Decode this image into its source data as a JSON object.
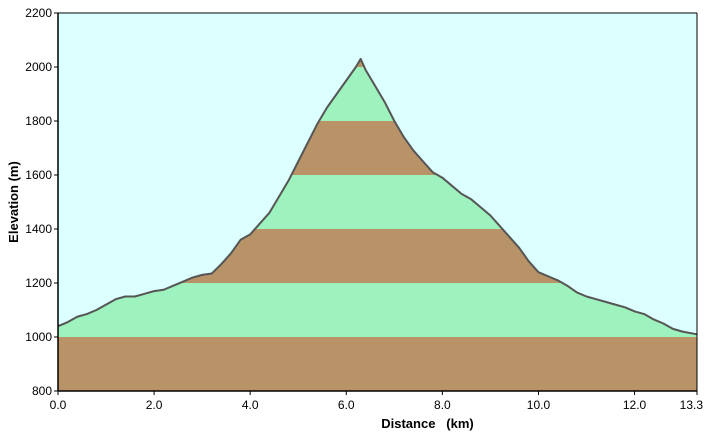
{
  "chart_data": {
    "type": "area",
    "title": "",
    "xlabel": "Distance   (km)",
    "ylabel": "Elevation (m)",
    "xlim": [
      0,
      13.3
    ],
    "ylim": [
      800,
      2200
    ],
    "x_ticks": [
      0,
      2,
      4,
      6,
      8,
      10,
      12,
      13.3
    ],
    "x_tick_labels": [
      "0.0",
      "2.0",
      "4.0",
      "6.0",
      "8.0",
      "10.0",
      "12.0",
      "13.3"
    ],
    "y_ticks": [
      800,
      1000,
      1200,
      1400,
      1600,
      1800,
      2000,
      2200
    ],
    "y_tick_labels": [
      "800",
      "1000",
      "1200",
      "1400",
      "1600",
      "1800",
      "2000",
      "2200"
    ],
    "band_size_m": 200,
    "band_colors": [
      "#b89368",
      "#9ef2bd"
    ],
    "colors": {
      "plot_background": "#dcffff",
      "profile_line": "#555555",
      "axis": "#000000"
    },
    "grid": false,
    "legend": "none",
    "series": [
      {
        "x": [
          0,
          0.2,
          0.4,
          0.6,
          0.8,
          1.0,
          1.2,
          1.4,
          1.6,
          1.8,
          2.0,
          2.2,
          2.4,
          2.6,
          2.8,
          3.0,
          3.2,
          3.4,
          3.6,
          3.8,
          4.0,
          4.2,
          4.4,
          4.6,
          4.8,
          5.0,
          5.2,
          5.4,
          5.6,
          5.8,
          6.0,
          6.2,
          6.3,
          6.4,
          6.6,
          6.8,
          7.0,
          7.2,
          7.4,
          7.6,
          7.8,
          8.0,
          8.2,
          8.4,
          8.6,
          8.8,
          9.0,
          9.2,
          9.4,
          9.6,
          9.8,
          10.0,
          10.2,
          10.4,
          10.6,
          10.8,
          11.0,
          11.2,
          11.4,
          11.6,
          11.8,
          12.0,
          12.2,
          12.4,
          12.6,
          12.8,
          13.0,
          13.3
        ],
        "y": [
          1040,
          1055,
          1075,
          1085,
          1100,
          1120,
          1140,
          1150,
          1150,
          1160,
          1170,
          1175,
          1190,
          1205,
          1220,
          1230,
          1235,
          1270,
          1310,
          1360,
          1380,
          1420,
          1460,
          1520,
          1580,
          1650,
          1720,
          1790,
          1850,
          1900,
          1950,
          2000,
          2030,
          1990,
          1930,
          1870,
          1800,
          1740,
          1690,
          1650,
          1610,
          1590,
          1560,
          1530,
          1510,
          1480,
          1450,
          1410,
          1370,
          1330,
          1280,
          1240,
          1225,
          1210,
          1190,
          1165,
          1150,
          1140,
          1130,
          1120,
          1110,
          1095,
          1085,
          1065,
          1050,
          1030,
          1020,
          1010
        ]
      }
    ]
  }
}
